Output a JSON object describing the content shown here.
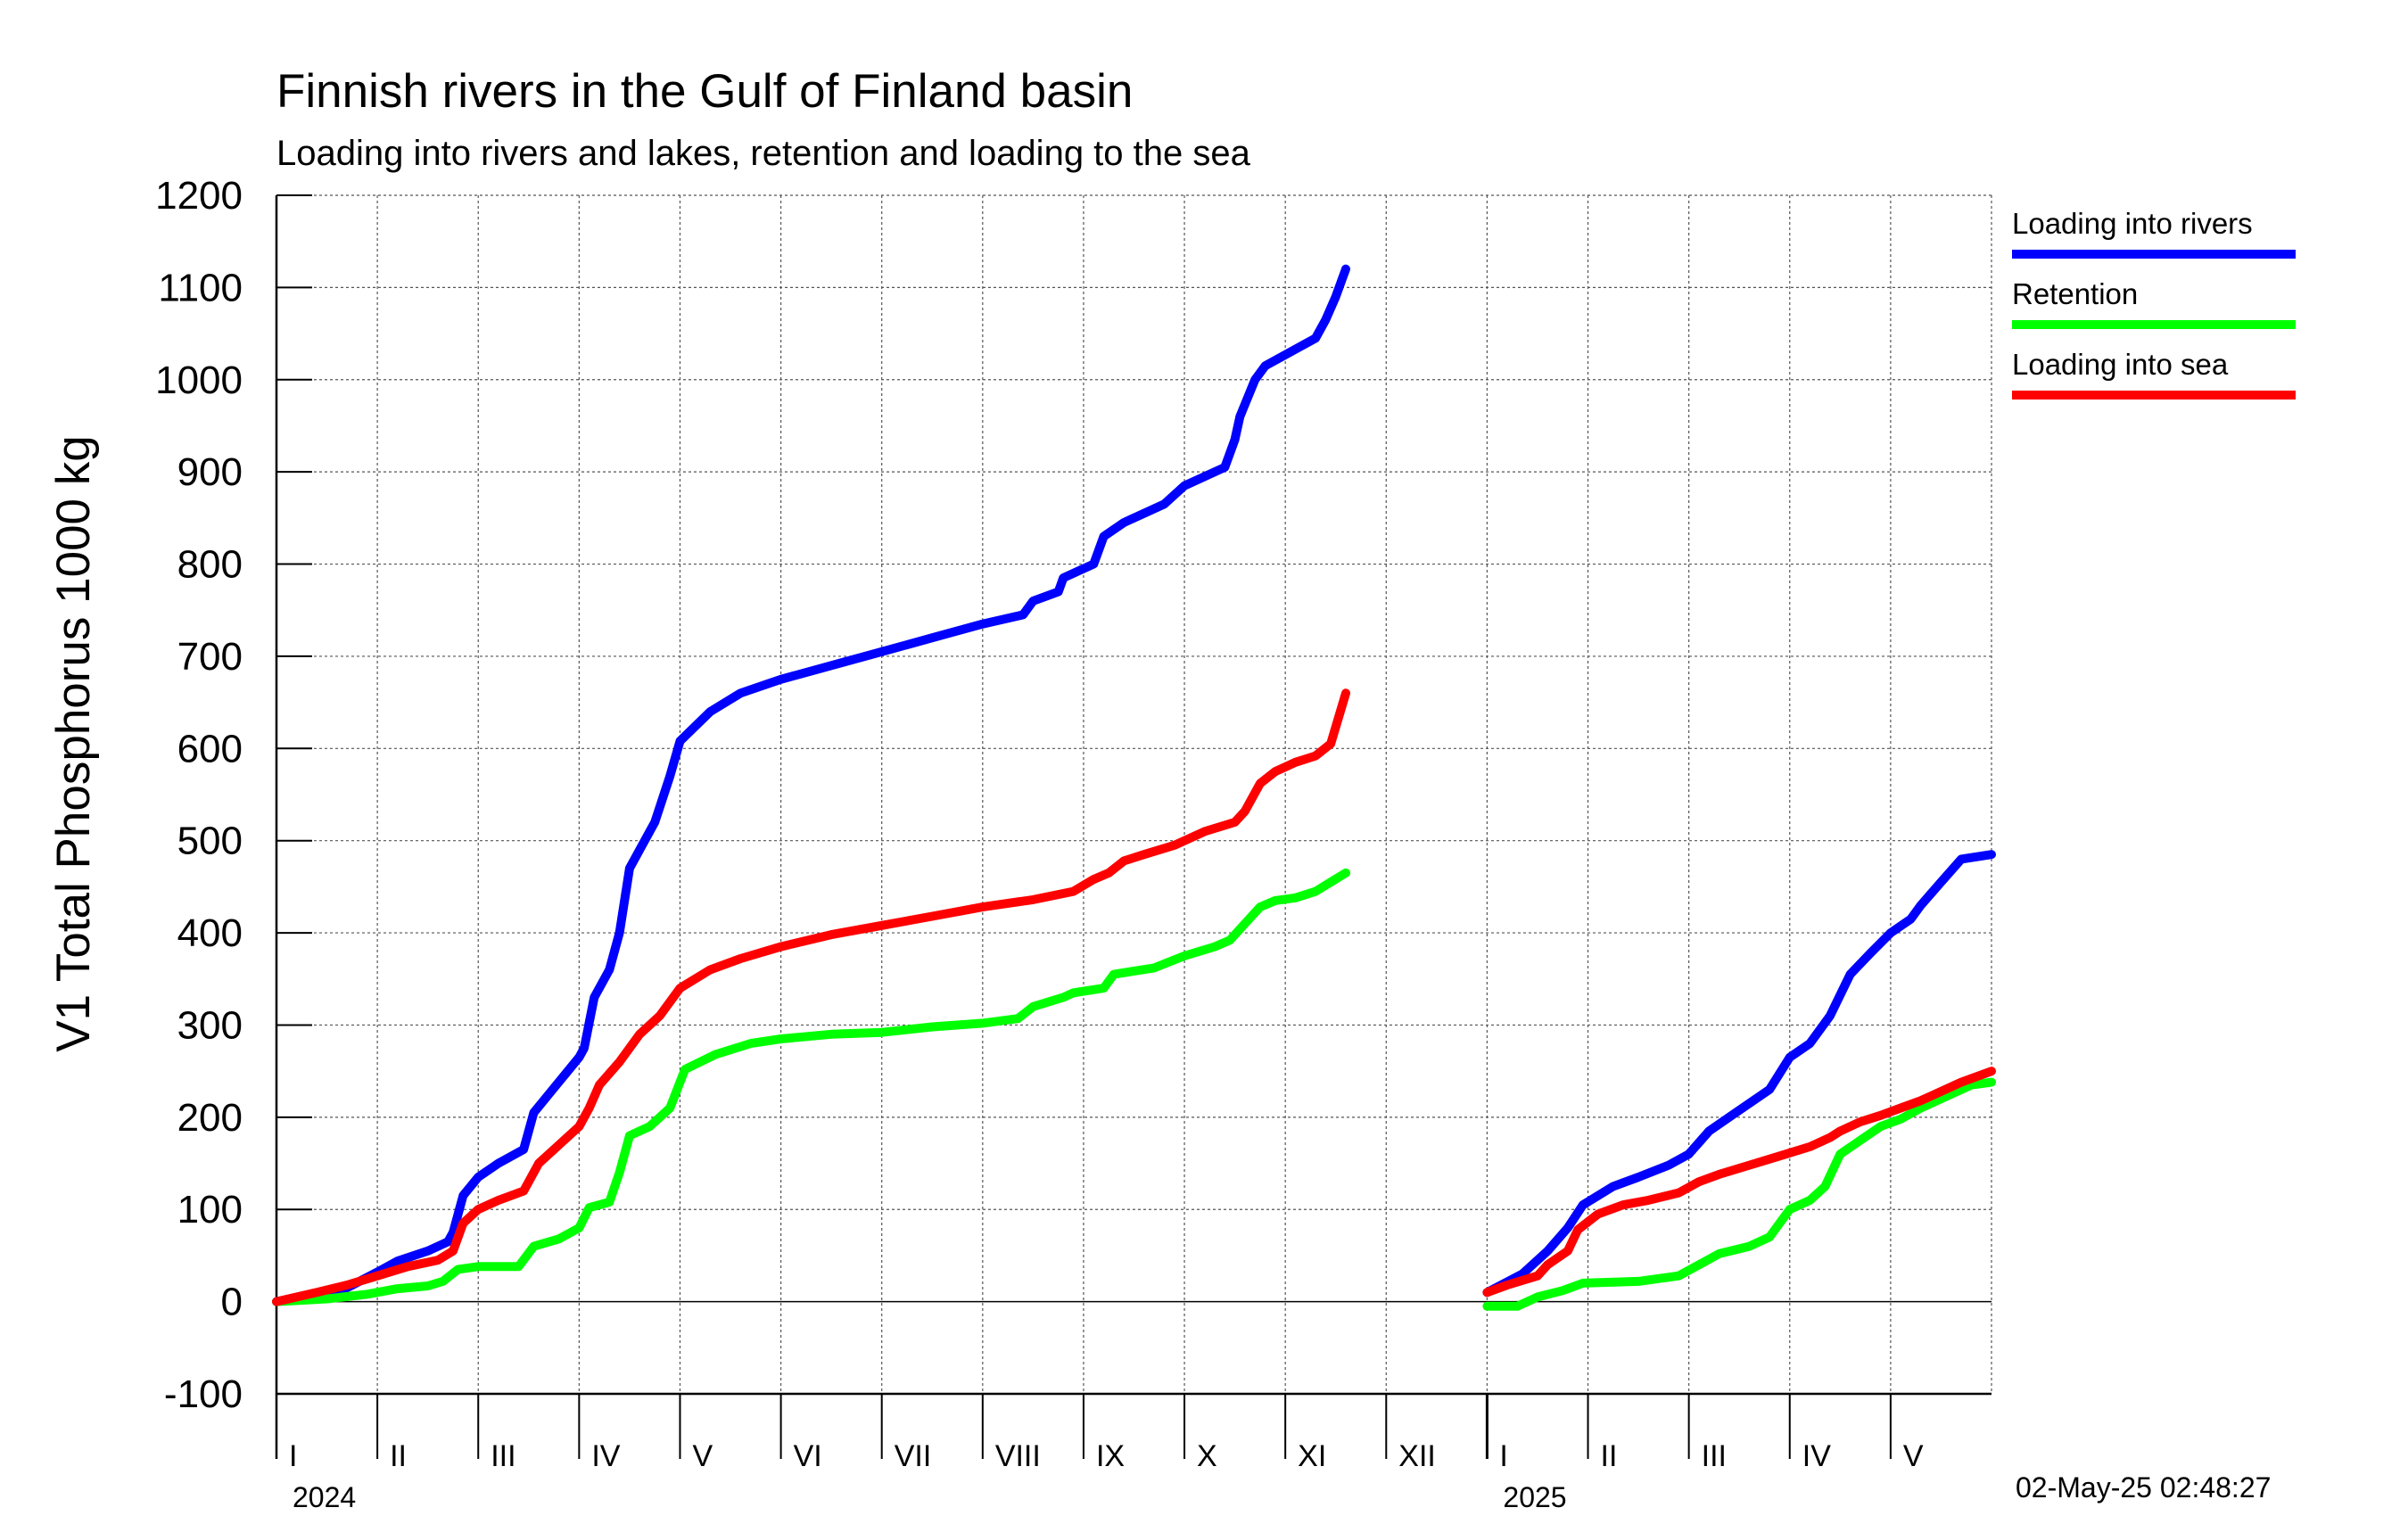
{
  "chart_data": {
    "type": "line",
    "title": "Finnish rivers in the Gulf of Finland basin",
    "subtitle": "Loading into rivers and lakes, retention and loading to the sea",
    "ylabel": "V1 Total Phosphorus 1000 kg",
    "xlabel": "",
    "ylim": [
      -100,
      1200
    ],
    "y_ticks": [
      -100,
      0,
      100,
      200,
      300,
      400,
      500,
      600,
      700,
      800,
      900,
      1000,
      1100,
      1200
    ],
    "grid": true,
    "legend_position": "right",
    "x_unit": "month index (0 = start of Jan 2024)",
    "xlim": [
      0,
      17
    ],
    "month_labels": [
      "I",
      "II",
      "III",
      "IV",
      "V",
      "VI",
      "VII",
      "VIII",
      "IX",
      "X",
      "XI",
      "XII",
      "I",
      "II",
      "III",
      "IV",
      "V"
    ],
    "year_labels": [
      {
        "label": "2024",
        "at": 0
      },
      {
        "label": "2025",
        "at": 12
      }
    ],
    "series": [
      {
        "name": "Loading into rivers",
        "color": "#0000ff",
        "segments": [
          [
            [
              0,
              0
            ],
            [
              0.4,
              8
            ],
            [
              0.7,
              15
            ],
            [
              1.0,
              32
            ],
            [
              1.2,
              44
            ],
            [
              1.5,
              55
            ],
            [
              1.7,
              65
            ],
            [
              1.75,
              75
            ],
            [
              1.85,
              115
            ],
            [
              2.0,
              135
            ],
            [
              2.2,
              150
            ],
            [
              2.45,
              165
            ],
            [
              2.55,
              205
            ],
            [
              2.7,
              225
            ],
            [
              2.85,
              245
            ],
            [
              3.0,
              265
            ],
            [
              3.05,
              275
            ],
            [
              3.15,
              330
            ],
            [
              3.3,
              360
            ],
            [
              3.4,
              400
            ],
            [
              3.5,
              470
            ],
            [
              3.6,
              490
            ],
            [
              3.75,
              520
            ],
            [
              3.9,
              570
            ],
            [
              4.0,
              608
            ],
            [
              4.3,
              640
            ],
            [
              4.6,
              660
            ],
            [
              5.0,
              675
            ],
            [
              5.5,
              690
            ],
            [
              6.0,
              705
            ],
            [
              6.5,
              720
            ],
            [
              7.0,
              735
            ],
            [
              7.4,
              745
            ],
            [
              7.5,
              760
            ],
            [
              7.75,
              770
            ],
            [
              7.8,
              785
            ],
            [
              8.1,
              800
            ],
            [
              8.2,
              830
            ],
            [
              8.4,
              845
            ],
            [
              8.8,
              865
            ],
            [
              9.0,
              885
            ],
            [
              9.4,
              905
            ],
            [
              9.5,
              935
            ],
            [
              9.55,
              960
            ],
            [
              9.7,
              1000
            ],
            [
              9.8,
              1015
            ],
            [
              10.05,
              1030
            ],
            [
              10.3,
              1045
            ],
            [
              10.4,
              1065
            ],
            [
              10.5,
              1090
            ],
            [
              10.6,
              1120
            ]
          ],
          [
            [
              12,
              10
            ],
            [
              12.35,
              30
            ],
            [
              12.6,
              55
            ],
            [
              12.8,
              80
            ],
            [
              12.95,
              105
            ],
            [
              13.25,
              125
            ],
            [
              13.5,
              135
            ],
            [
              13.8,
              148
            ],
            [
              14.0,
              160
            ],
            [
              14.2,
              185
            ],
            [
              14.4,
              200
            ],
            [
              14.6,
              215
            ],
            [
              14.8,
              230
            ],
            [
              15.0,
              265
            ],
            [
              15.2,
              280
            ],
            [
              15.4,
              310
            ],
            [
              15.6,
              355
            ],
            [
              15.8,
              378
            ],
            [
              16.0,
              400
            ],
            [
              16.2,
              415
            ],
            [
              16.3,
              430
            ],
            [
              16.5,
              455
            ],
            [
              16.7,
              480
            ],
            [
              17.0,
              485
            ]
          ]
        ]
      },
      {
        "name": "Retention",
        "color": "#00ff00",
        "segments": [
          [
            [
              0,
              0
            ],
            [
              0.5,
              3
            ],
            [
              0.9,
              8
            ],
            [
              1.2,
              14
            ],
            [
              1.5,
              17
            ],
            [
              1.65,
              22
            ],
            [
              1.8,
              35
            ],
            [
              2.0,
              38
            ],
            [
              2.4,
              38
            ],
            [
              2.55,
              60
            ],
            [
              2.8,
              68
            ],
            [
              3.0,
              80
            ],
            [
              3.1,
              102
            ],
            [
              3.3,
              108
            ],
            [
              3.4,
              140
            ],
            [
              3.5,
              180
            ],
            [
              3.7,
              190
            ],
            [
              3.9,
              210
            ],
            [
              4.05,
              252
            ],
            [
              4.35,
              268
            ],
            [
              4.7,
              280
            ],
            [
              5.0,
              285
            ],
            [
              5.5,
              290
            ],
            [
              6.0,
              292
            ],
            [
              6.5,
              298
            ],
            [
              7.0,
              302
            ],
            [
              7.35,
              307
            ],
            [
              7.5,
              320
            ],
            [
              7.8,
              330
            ],
            [
              7.9,
              335
            ],
            [
              8.2,
              340
            ],
            [
              8.3,
              355
            ],
            [
              8.7,
              362
            ],
            [
              9.0,
              375
            ],
            [
              9.3,
              385
            ],
            [
              9.45,
              392
            ],
            [
              9.6,
              410
            ],
            [
              9.75,
              428
            ],
            [
              9.9,
              435
            ],
            [
              10.1,
              438
            ],
            [
              10.3,
              445
            ],
            [
              10.45,
              455
            ],
            [
              10.6,
              465
            ]
          ],
          [
            [
              12,
              -5
            ],
            [
              12.3,
              -5
            ],
            [
              12.5,
              5
            ],
            [
              12.75,
              12
            ],
            [
              12.95,
              20
            ],
            [
              13.5,
              22
            ],
            [
              13.9,
              28
            ],
            [
              14.1,
              40
            ],
            [
              14.3,
              52
            ],
            [
              14.6,
              60
            ],
            [
              14.8,
              70
            ],
            [
              15.0,
              100
            ],
            [
              15.2,
              110
            ],
            [
              15.35,
              125
            ],
            [
              15.5,
              160
            ],
            [
              15.7,
              175
            ],
            [
              15.9,
              190
            ],
            [
              16.1,
              198
            ],
            [
              16.3,
              210
            ],
            [
              16.6,
              225
            ],
            [
              16.8,
              235
            ],
            [
              17.0,
              238
            ]
          ]
        ]
      },
      {
        "name": "Loading into sea",
        "color": "#ff0000",
        "segments": [
          [
            [
              0,
              0
            ],
            [
              0.4,
              10
            ],
            [
              0.7,
              18
            ],
            [
              1.0,
              28
            ],
            [
              1.3,
              38
            ],
            [
              1.6,
              45
            ],
            [
              1.75,
              55
            ],
            [
              1.85,
              85
            ],
            [
              2.0,
              100
            ],
            [
              2.2,
              110
            ],
            [
              2.45,
              120
            ],
            [
              2.6,
              150
            ],
            [
              2.8,
              170
            ],
            [
              3.0,
              190
            ],
            [
              3.1,
              210
            ],
            [
              3.2,
              235
            ],
            [
              3.4,
              260
            ],
            [
              3.6,
              290
            ],
            [
              3.8,
              310
            ],
            [
              4.0,
              340
            ],
            [
              4.3,
              360
            ],
            [
              4.6,
              372
            ],
            [
              5.0,
              385
            ],
            [
              5.5,
              398
            ],
            [
              6.0,
              408
            ],
            [
              6.5,
              418
            ],
            [
              7.0,
              428
            ],
            [
              7.5,
              436
            ],
            [
              7.9,
              445
            ],
            [
              8.1,
              458
            ],
            [
              8.25,
              465
            ],
            [
              8.4,
              478
            ],
            [
              8.6,
              485
            ],
            [
              8.9,
              495
            ],
            [
              9.2,
              510
            ],
            [
              9.5,
              520
            ],
            [
              9.6,
              532
            ],
            [
              9.75,
              562
            ],
            [
              9.9,
              575
            ],
            [
              10.1,
              585
            ],
            [
              10.3,
              592
            ],
            [
              10.45,
              605
            ],
            [
              10.6,
              660
            ]
          ],
          [
            [
              12,
              10
            ],
            [
              12.2,
              18
            ],
            [
              12.5,
              28
            ],
            [
              12.6,
              40
            ],
            [
              12.8,
              55
            ],
            [
              12.9,
              78
            ],
            [
              13.1,
              95
            ],
            [
              13.35,
              105
            ],
            [
              13.6,
              110
            ],
            [
              13.9,
              118
            ],
            [
              14.1,
              130
            ],
            [
              14.3,
              138
            ],
            [
              14.6,
              148
            ],
            [
              14.9,
              158
            ],
            [
              15.2,
              168
            ],
            [
              15.4,
              178
            ],
            [
              15.5,
              185
            ],
            [
              15.7,
              195
            ],
            [
              15.9,
              202
            ],
            [
              16.1,
              210
            ],
            [
              16.3,
              218
            ],
            [
              16.5,
              228
            ],
            [
              16.7,
              238
            ],
            [
              17.0,
              250
            ]
          ]
        ]
      }
    ],
    "timestamp": "02-May-25 02:48:27"
  },
  "colors": {
    "background": "#ffffff",
    "grid": "#555555",
    "axis": "#000000"
  }
}
